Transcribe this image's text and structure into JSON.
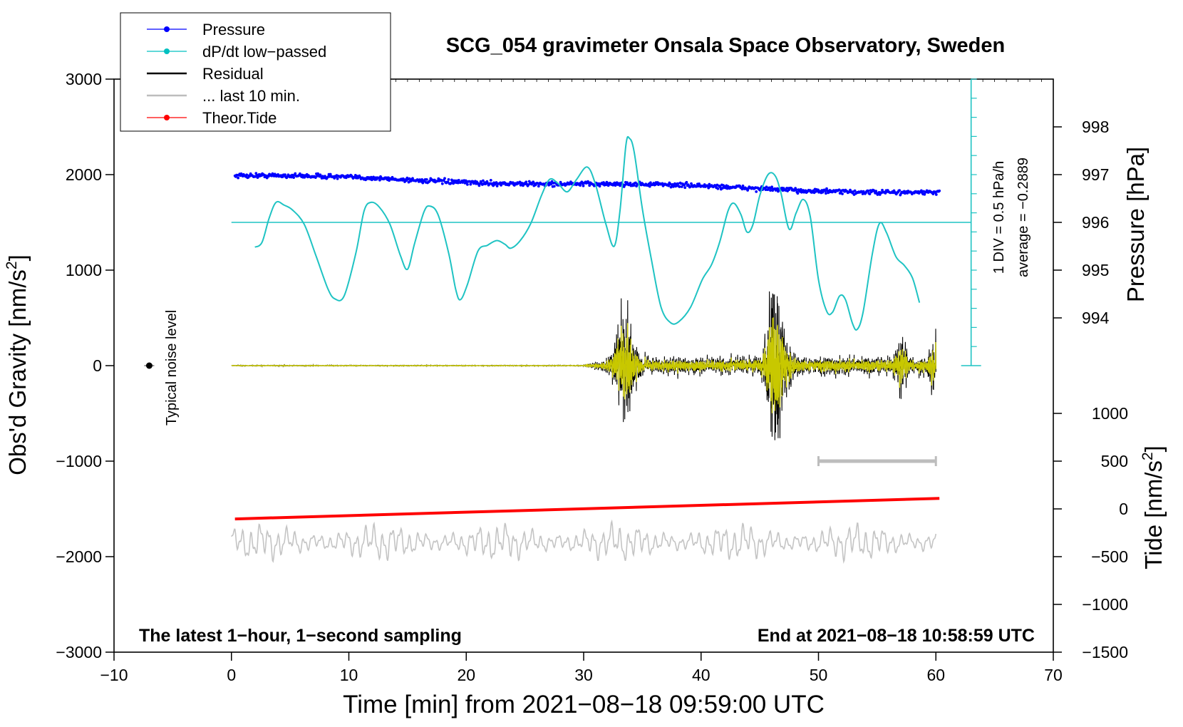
{
  "chart_data": {
    "type": "line",
    "title": "SCG_054 gravimeter Onsala Space Observatory, Sweden",
    "xlabel": "Time [min] from 2021−08−18 09:59:00 UTC",
    "ylabel_left_main": "Obs'd Gravity [nm/s",
    "ylabel_left_sup": "2",
    "ylabel_left_tail": "]",
    "ylabel_right_top": "Pressure [hPa]",
    "ylabel_right_bottom_main": "Tide [nm/s",
    "ylabel_right_bottom_sup": "2",
    "ylabel_right_bottom_tail": "]",
    "xlim": [
      -10,
      70
    ],
    "ylim": [
      -3000,
      3000
    ],
    "x_ticks": [
      -10,
      0,
      10,
      20,
      30,
      40,
      50,
      60,
      70
    ],
    "x_tick_labels": [
      "−10",
      "0",
      "10",
      "20",
      "30",
      "40",
      "50",
      "60",
      "70"
    ],
    "y_ticks": [
      -3000,
      -2000,
      -1000,
      0,
      1000,
      2000,
      3000
    ],
    "y_tick_labels": [
      "−3000",
      "−2000",
      "−1000",
      "0",
      "1000",
      "2000",
      "3000"
    ],
    "pressure_axis": {
      "ticks": [
        994,
        995,
        996,
        997,
        998
      ],
      "tick_labels": [
        "994",
        "995",
        "996",
        "997",
        "998"
      ],
      "gravity_at_996": 1500,
      "gravity_per_hpa": 500
    },
    "tide_axis": {
      "ticks": [
        -1500,
        -1000,
        -500,
        0,
        500,
        1000
      ],
      "tick_labels": [
        "−1500",
        "−1000",
        "−500",
        "0",
        "500",
        "1000"
      ],
      "gravity_offset": -1500
    },
    "legend": [
      {
        "label": "Pressure",
        "color": "#0000ff",
        "marker": true
      },
      {
        "label": "dP/dt low−passed",
        "color": "#00c0c0",
        "marker": true
      },
      {
        "label": "Residual",
        "color": "#000000",
        "marker": false
      },
      {
        "label": "... last 10 min.",
        "color": "#bdbdbd",
        "marker": false
      },
      {
        "label": "Theor.Tide",
        "color": "#ff0000",
        "marker": true
      }
    ],
    "annotations": {
      "bottom_left": "The latest 1−hour, 1−second sampling",
      "bottom_right": "End at 2021−08−18 10:58:59 UTC",
      "noise_label": "Typical noise level",
      "div_label": "1 DIV = 0.5 hPa/h",
      "average_label": "average = −0.2889",
      "scale_bar_range": [
        50,
        60
      ],
      "scale_bar_level": -1000,
      "noise_marker": [
        -7,
        0
      ],
      "dpdt_scale_range": [
        0,
        1500
      ],
      "dpdt_baseline_x": [
        0,
        63
      ]
    },
    "series": [
      {
        "name": "Pressure",
        "color": "#0000ff",
        "x_range": [
          0.3,
          60.3
        ],
        "start": 1990,
        "end": 1810,
        "noise": 12
      },
      {
        "name": "dP/dt low-passed",
        "color": "#1fc3c3",
        "points": [
          [
            2,
            1240
          ],
          [
            2.6,
            1290
          ],
          [
            3.2,
            1540
          ],
          [
            3.8,
            1710
          ],
          [
            4.5,
            1680
          ],
          [
            5.2,
            1630
          ],
          [
            6.2,
            1480
          ],
          [
            7.2,
            1150
          ],
          [
            8.2,
            810
          ],
          [
            8.8,
            700
          ],
          [
            9.6,
            730
          ],
          [
            10.6,
            1180
          ],
          [
            11.3,
            1620
          ],
          [
            11.9,
            1710
          ],
          [
            12.6,
            1660
          ],
          [
            13.5,
            1480
          ],
          [
            14.4,
            1150
          ],
          [
            15,
            1010
          ],
          [
            15.6,
            1280
          ],
          [
            16.4,
            1610
          ],
          [
            16.9,
            1670
          ],
          [
            17.6,
            1580
          ],
          [
            18.5,
            1180
          ],
          [
            19.1,
            800
          ],
          [
            19.5,
            690
          ],
          [
            20.1,
            850
          ],
          [
            21,
            1200
          ],
          [
            21.8,
            1260
          ],
          [
            22.6,
            1310
          ],
          [
            23.3,
            1270
          ],
          [
            23.8,
            1230
          ],
          [
            24.6,
            1310
          ],
          [
            25.5,
            1490
          ],
          [
            26.4,
            1780
          ],
          [
            27.1,
            1950
          ],
          [
            27.8,
            1910
          ],
          [
            28.6,
            1820
          ],
          [
            29.4,
            1950
          ],
          [
            30.3,
            2080
          ],
          [
            31,
            1900
          ],
          [
            31.9,
            1480
          ],
          [
            32.6,
            1250
          ],
          [
            33.1,
            1630
          ],
          [
            33.6,
            2310
          ],
          [
            33.9,
            2380
          ],
          [
            34.3,
            2240
          ],
          [
            35,
            1640
          ],
          [
            35.8,
            1090
          ],
          [
            36.6,
            610
          ],
          [
            37.4,
            450
          ],
          [
            38.1,
            460
          ],
          [
            39.1,
            610
          ],
          [
            40.1,
            900
          ],
          [
            40.9,
            1060
          ],
          [
            41.6,
            1300
          ],
          [
            42.3,
            1620
          ],
          [
            42.8,
            1700
          ],
          [
            43.4,
            1580
          ],
          [
            43.9,
            1400
          ],
          [
            44.4,
            1470
          ],
          [
            45,
            1780
          ],
          [
            45.7,
            2000
          ],
          [
            46.3,
            1990
          ],
          [
            46.8,
            1810
          ],
          [
            47.5,
            1430
          ],
          [
            48.1,
            1600
          ],
          [
            48.7,
            1740
          ],
          [
            49.3,
            1560
          ],
          [
            50,
            900
          ],
          [
            50.7,
            570
          ],
          [
            51.2,
            560
          ],
          [
            51.8,
            730
          ],
          [
            52.3,
            690
          ],
          [
            52.9,
            440
          ],
          [
            53.3,
            380
          ],
          [
            53.8,
            560
          ],
          [
            54.6,
            1180
          ],
          [
            55.2,
            1490
          ],
          [
            55.8,
            1390
          ],
          [
            56.6,
            1140
          ],
          [
            57.3,
            1050
          ],
          [
            58,
            920
          ],
          [
            58.6,
            660
          ]
        ]
      },
      {
        "name": "Residual",
        "color": "#000000",
        "x_range": [
          0,
          60
        ],
        "quiet_until": 30,
        "quiet_amp": 4,
        "active_amp": 90,
        "bursts": [
          {
            "x": 33.5,
            "amp": 520,
            "width": 0.8
          },
          {
            "x": 46.5,
            "amp": 600,
            "width": 0.9
          },
          {
            "x": 45.9,
            "amp": 380,
            "width": 0.5
          },
          {
            "x": 57.0,
            "amp": 240,
            "width": 0.5
          },
          {
            "x": 59.8,
            "amp": 250,
            "width": 0.4
          }
        ]
      },
      {
        "name": "Residual filtered",
        "color": "#c8c800",
        "x_range": [
          0,
          60
        ],
        "ratio": 0.6
      },
      {
        "name": "... last 10 min.",
        "color": "#c4c4c4",
        "x_range": [
          0,
          60
        ],
        "center": -1850,
        "amp": 210
      },
      {
        "name": "Theor.Tide",
        "color": "#ff0000",
        "points": [
          [
            0.3,
            -1605
          ],
          [
            60.3,
            -1390
          ]
        ]
      }
    ]
  }
}
